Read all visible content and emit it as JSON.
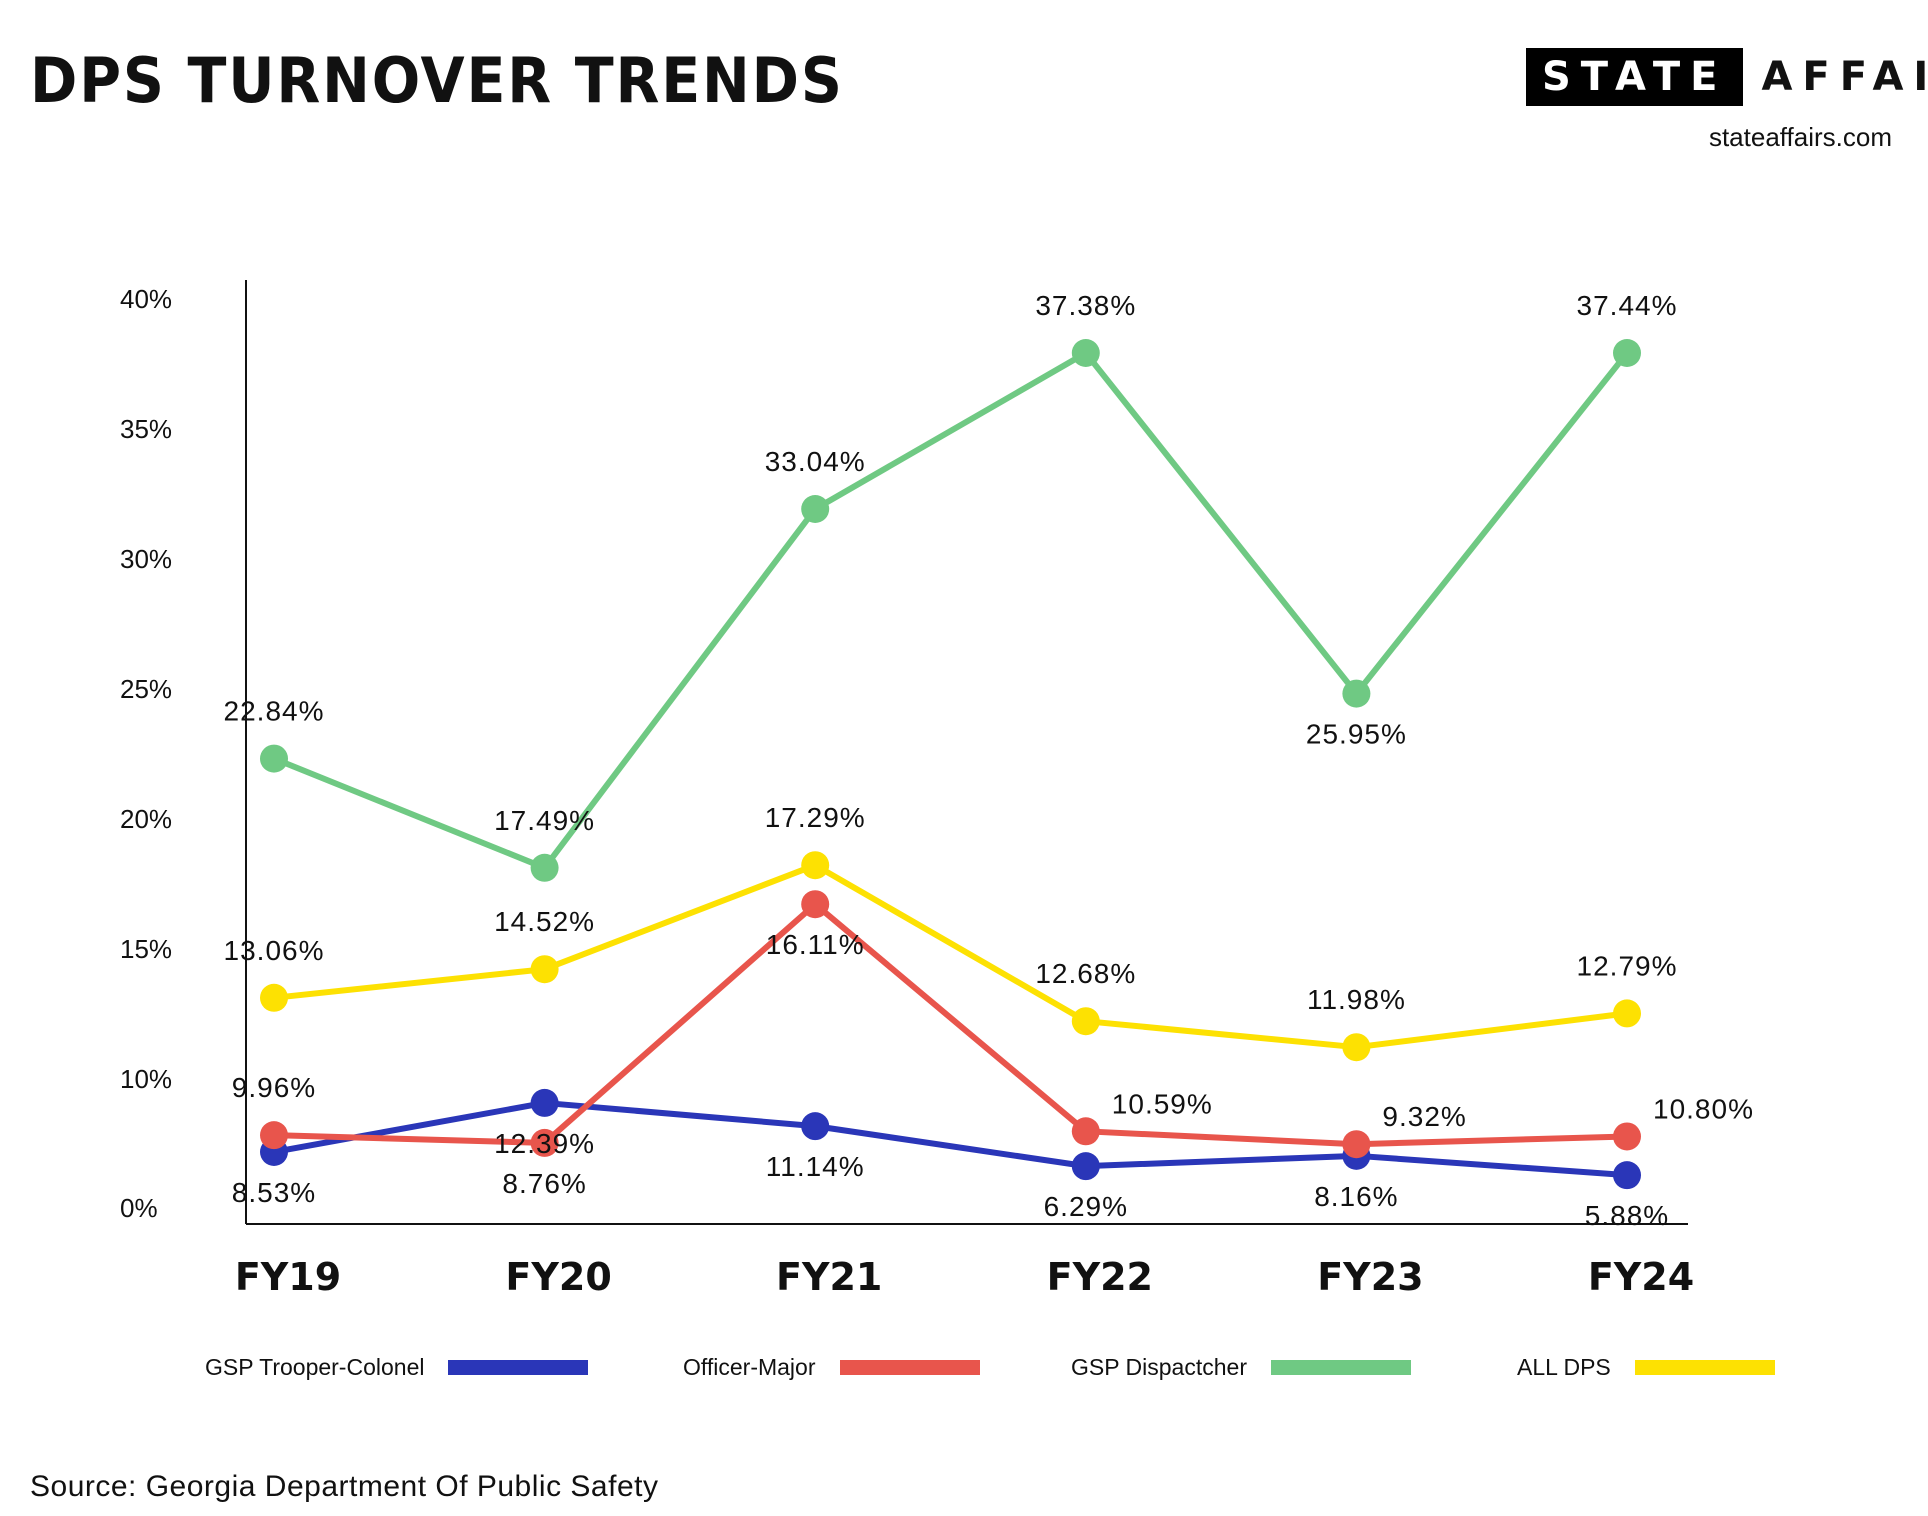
{
  "header": {
    "title": "DPS TURNOVER TRENDS",
    "brand_box": "STATE",
    "brand_text": "AFFAIRS",
    "site": "stateaffairs.com"
  },
  "source": "Source: Georgia Department Of Public Safety",
  "colors": {
    "axis": "#111111"
  },
  "chart_data": {
    "type": "line",
    "title": "DPS TURNOVER TRENDS",
    "xlabel": "",
    "ylabel": "",
    "categories": [
      "FY19",
      "FY20",
      "FY21",
      "FY22",
      "FY23",
      "FY24"
    ],
    "ylim": [
      0,
      40
    ],
    "yticks": [
      "0%",
      "10%",
      "15%",
      "20%",
      "25%",
      "30%",
      "35%",
      "40%"
    ],
    "ytick_values": [
      0,
      10,
      15,
      20,
      25,
      30,
      35,
      40
    ],
    "grid": false,
    "legend_position": "bottom",
    "series": [
      {
        "name": "GSP Trooper-Colonel",
        "color": "#2a36b8",
        "values": [
          8.53,
          12.39,
          11.14,
          6.29,
          8.16,
          5.88
        ],
        "point_values": [
          4.5,
          8.3,
          6.5,
          3.4,
          4.2,
          2.7
        ],
        "labels": [
          "8.53%",
          "12.39%",
          "11.14%",
          "6.29%",
          "8.16%",
          "5.88%"
        ],
        "label_pos": [
          "below",
          "below",
          "below",
          "below",
          "below",
          "below"
        ]
      },
      {
        "name": "Officer-Major",
        "color": "#e8554c",
        "values": [
          9.96,
          8.76,
          16.11,
          10.59,
          9.32,
          10.8
        ],
        "point_values": [
          5.8,
          5.2,
          16.8,
          6.1,
          5.1,
          5.7
        ],
        "labels": [
          "9.96%",
          "8.76%",
          "16.11%",
          "10.59%",
          "9.32%",
          "10.80%"
        ],
        "label_pos": [
          "above",
          "below",
          "below",
          "right",
          "right",
          "right"
        ]
      },
      {
        "name": "GSP Dispactcher",
        "color": "#6fc983",
        "values": [
          22.84,
          17.49,
          33.04,
          37.38,
          25.95,
          37.44
        ],
        "point_values": [
          22.4,
          18.2,
          32.0,
          38.0,
          24.9,
          38.0
        ],
        "labels": [
          "22.84%",
          "17.49%",
          "33.04%",
          "37.38%",
          "25.95%",
          "37.44%"
        ],
        "label_pos": [
          "above",
          "above",
          "above",
          "above",
          "below",
          "above"
        ]
      },
      {
        "name": "ALL DPS",
        "color": "#fde102",
        "values": [
          13.06,
          14.52,
          17.29,
          12.68,
          11.98,
          12.79
        ],
        "point_values": [
          13.2,
          14.3,
          18.3,
          12.3,
          11.3,
          12.6
        ],
        "labels": [
          "13.06%",
          "14.52%",
          "17.29%",
          "12.68%",
          "11.98%",
          "12.79%"
        ],
        "label_pos": [
          "above",
          "above",
          "above",
          "above",
          "above",
          "above"
        ]
      }
    ]
  }
}
